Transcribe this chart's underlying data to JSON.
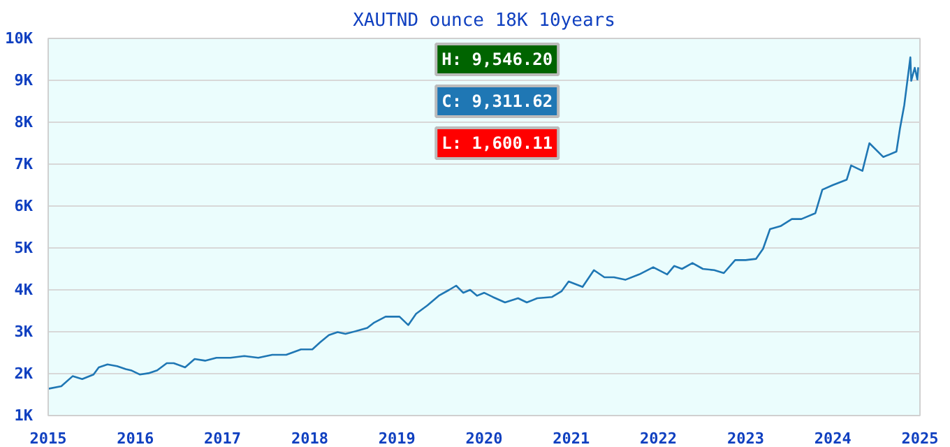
{
  "chart_data": {
    "type": "line",
    "title": "XAUTND ounce 18K 10years",
    "x": [
      2015.0,
      2015.15,
      2015.28,
      2015.39,
      2015.52,
      2015.58,
      2015.68,
      2015.79,
      2015.89,
      2015.95,
      2016.05,
      2016.15,
      2016.25,
      2016.36,
      2016.44,
      2016.57,
      2016.68,
      2016.8,
      2016.93,
      2017.09,
      2017.25,
      2017.41,
      2017.57,
      2017.73,
      2017.9,
      2018.03,
      2018.12,
      2018.22,
      2018.32,
      2018.41,
      2018.54,
      2018.66,
      2018.74,
      2018.87,
      2019.03,
      2019.13,
      2019.22,
      2019.35,
      2019.48,
      2019.6,
      2019.68,
      2019.76,
      2019.84,
      2019.92,
      2020.0,
      2020.1,
      2020.24,
      2020.39,
      2020.49,
      2020.61,
      2020.78,
      2020.89,
      2020.97,
      2021.13,
      2021.26,
      2021.38,
      2021.49,
      2021.62,
      2021.78,
      2021.94,
      2022.1,
      2022.18,
      2022.27,
      2022.39,
      2022.51,
      2022.64,
      2022.75,
      2022.88,
      2023.0,
      2023.12,
      2023.2,
      2023.28,
      2023.4,
      2023.53,
      2023.64,
      2023.8,
      2023.88,
      2024.0,
      2024.16,
      2024.21,
      2024.34,
      2024.42,
      2024.58,
      2024.73,
      2024.77,
      2024.82,
      2024.89,
      2024.9,
      2024.94,
      2024.97,
      2024.98
    ],
    "series": [
      {
        "color": "#1f77b4",
        "values": [
          1640,
          1700,
          1940,
          1870,
          1980,
          2150,
          2220,
          2180,
          2110,
          2080,
          1980,
          2010,
          2080,
          2250,
          2250,
          2150,
          2350,
          2310,
          2380,
          2380,
          2420,
          2380,
          2450,
          2450,
          2580,
          2580,
          2750,
          2920,
          2990,
          2950,
          3020,
          3090,
          3220,
          3360,
          3360,
          3160,
          3430,
          3630,
          3860,
          4000,
          4100,
          3930,
          4000,
          3860,
          3930,
          3830,
          3700,
          3800,
          3700,
          3800,
          3830,
          3970,
          4200,
          4070,
          4470,
          4300,
          4300,
          4240,
          4370,
          4540,
          4370,
          4570,
          4500,
          4640,
          4500,
          4470,
          4400,
          4710,
          4710,
          4740,
          4980,
          5450,
          5520,
          5690,
          5690,
          5830,
          6390,
          6500,
          6630,
          6970,
          6840,
          7500,
          7170,
          7300,
          7840,
          8410,
          9550,
          8990,
          9300,
          9020,
          9310
        ]
      }
    ],
    "xlim": [
      2015,
      2025
    ],
    "xticks": [
      2015,
      2016,
      2017,
      2018,
      2019,
      2020,
      2021,
      2022,
      2023,
      2024,
      2025
    ],
    "ylim": [
      1000,
      10000
    ],
    "yticks": [
      {
        "value": 1000,
        "label": "1K"
      },
      {
        "value": 2000,
        "label": "2K"
      },
      {
        "value": 3000,
        "label": "3K"
      },
      {
        "value": 4000,
        "label": "4K"
      },
      {
        "value": 5000,
        "label": "5K"
      },
      {
        "value": 6000,
        "label": "6K"
      },
      {
        "value": 7000,
        "label": "7K"
      },
      {
        "value": 8000,
        "label": "8K"
      },
      {
        "value": 9000,
        "label": "9K"
      },
      {
        "value": 10000,
        "label": "10K"
      }
    ],
    "grid": "y",
    "line_style": "solid",
    "annotations": [
      "H: 9,546.20",
      "C: 9,311.62",
      "L: 1,600.11"
    ]
  }
}
